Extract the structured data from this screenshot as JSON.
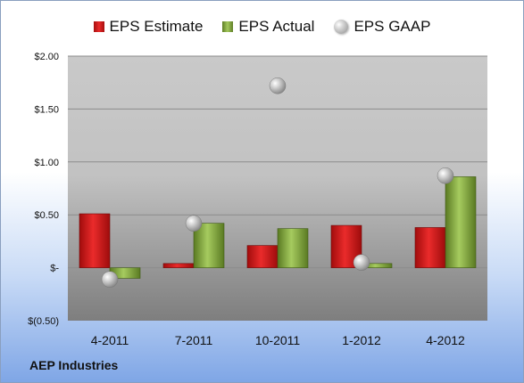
{
  "footer": {
    "company": "AEP Industries"
  },
  "chart_data": {
    "type": "bar",
    "categories": [
      "4-2011",
      "7-2011",
      "10-2011",
      "1-2012",
      "4-2012"
    ],
    "series": [
      {
        "name": "EPS Estimate",
        "type": "bar",
        "values": [
          0.51,
          0.04,
          0.21,
          0.4,
          0.38
        ],
        "color": "#d81f1f"
      },
      {
        "name": "EPS Actual",
        "type": "bar",
        "values": [
          -0.1,
          0.42,
          0.37,
          0.04,
          0.86
        ],
        "color": "#8fb347"
      },
      {
        "name": "EPS GAAP",
        "type": "scatter",
        "values": [
          -0.11,
          0.42,
          1.72,
          0.05,
          0.87
        ],
        "color": "#b8b8b8"
      }
    ],
    "ylim": [
      -0.5,
      2.0
    ],
    "yticks": [
      {
        "value": 2.0,
        "label": "$2.00"
      },
      {
        "value": 1.5,
        "label": "$1.50"
      },
      {
        "value": 1.0,
        "label": "$1.00"
      },
      {
        "value": 0.5,
        "label": "$0.50"
      },
      {
        "value": 0.0,
        "label": "$-"
      },
      {
        "value": -0.5,
        "label": "$(0.50)"
      }
    ],
    "grid": true,
    "legend_position": "top"
  }
}
